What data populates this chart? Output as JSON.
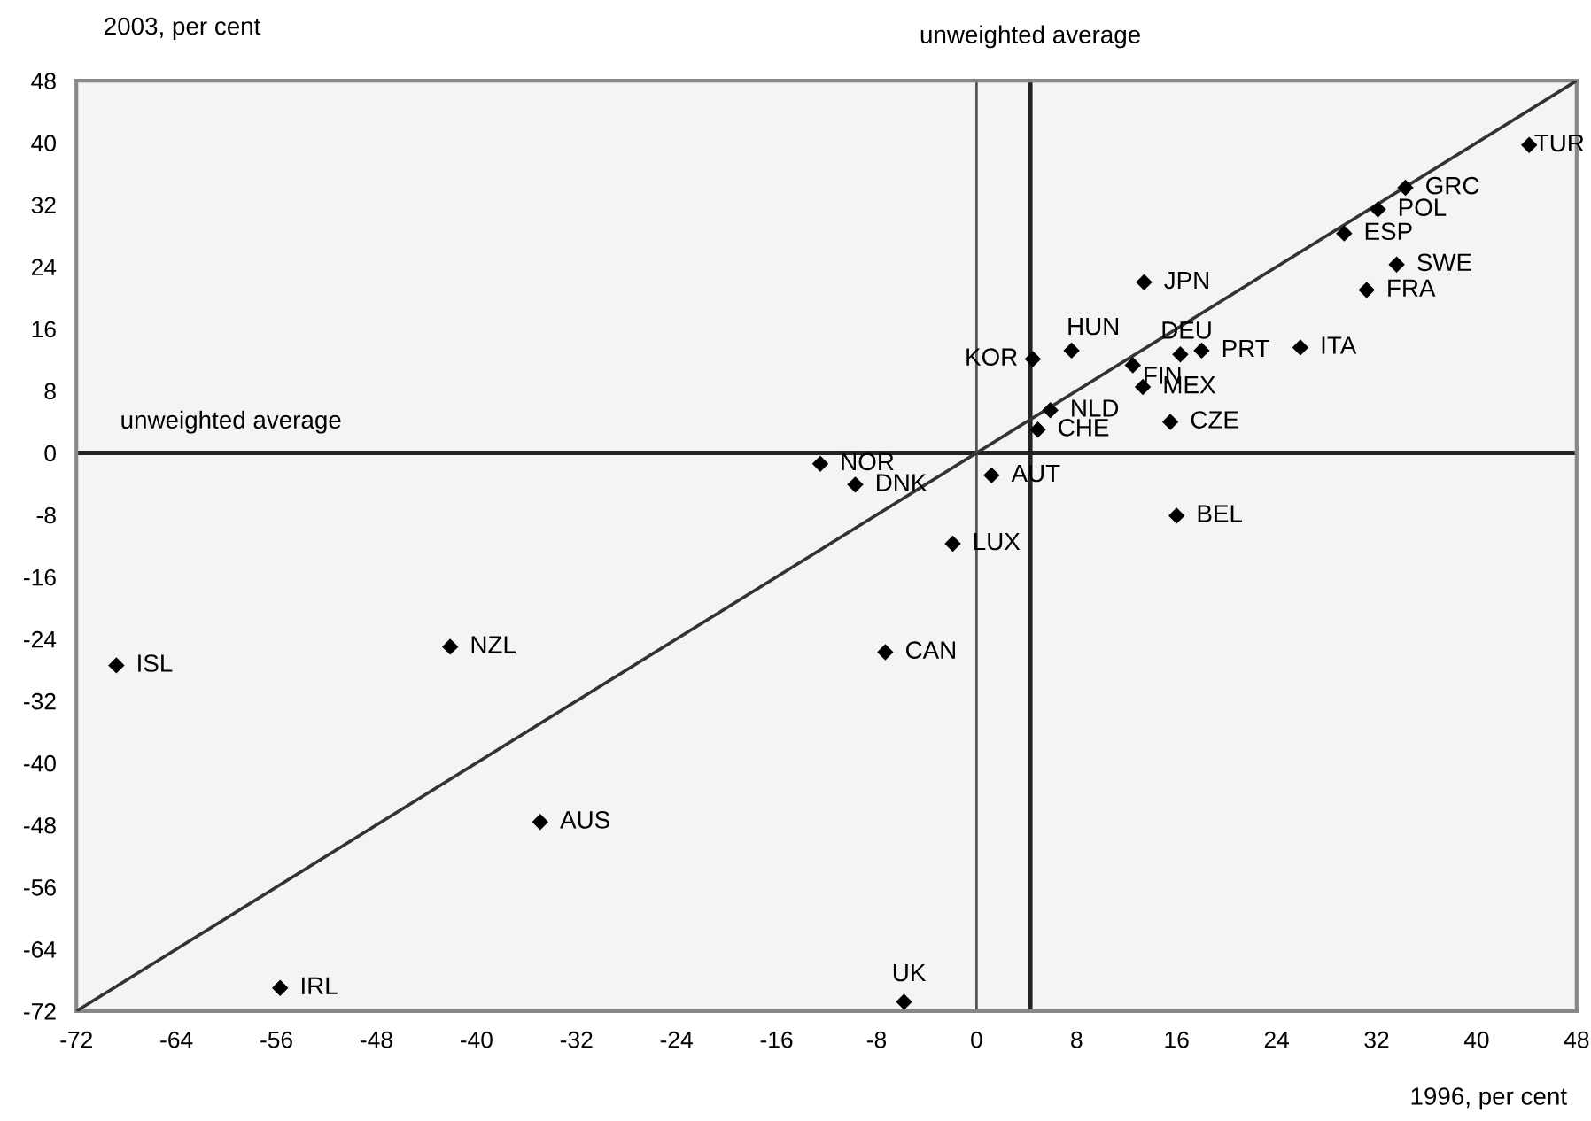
{
  "chart_data": {
    "type": "scatter",
    "xlabel": "1996, per cent",
    "ylabel": "2003, per cent",
    "xlim": [
      -72,
      48
    ],
    "ylim": [
      -72,
      48
    ],
    "xticks": [
      -72,
      -64,
      -56,
      -48,
      -40,
      -32,
      -24,
      -16,
      -8,
      0,
      8,
      16,
      24,
      32,
      40,
      48
    ],
    "yticks": [
      -72,
      -64,
      -56,
      -48,
      -40,
      -32,
      -24,
      -16,
      -8,
      0,
      8,
      16,
      24,
      32,
      40,
      48
    ],
    "grid": false,
    "legend": false,
    "marker": "diamond",
    "series": [
      {
        "color": "#000000",
        "x": [
          44.2,
          34.3,
          32.1,
          29.4,
          33.6,
          31.2,
          13.4,
          7.6,
          4.5,
          12.5,
          16.3,
          18.0,
          25.9,
          13.3,
          5.9,
          4.9,
          15.5,
          1.2,
          16.0,
          -1.9,
          -9.7,
          -12.5,
          -68.8,
          -42.1,
          -34.9,
          -55.7,
          -7.3,
          -5.8
        ],
        "values": [
          39.7,
          34.2,
          31.4,
          28.3,
          24.3,
          21.0,
          22.0,
          13.2,
          12.1,
          11.3,
          12.7,
          13.2,
          13.6,
          8.5,
          5.5,
          3.0,
          4.0,
          -2.9,
          -8.1,
          -11.7,
          -4.1,
          -1.4,
          -27.4,
          -25.0,
          -47.6,
          -69.0,
          -25.7,
          -70.8
        ]
      },
      {
        "type": "line",
        "color": "#333333",
        "x": [
          -72,
          48
        ],
        "values": [
          -72,
          48
        ],
        "marker": "none"
      }
    ],
    "ref_lines": [
      {
        "axis": "y",
        "value": 0,
        "label": "unweighted average",
        "color": "#222222"
      },
      {
        "axis": "x",
        "value": 4.3,
        "label": "unweighted average",
        "color": "#222222"
      },
      {
        "axis": "x",
        "value": 0,
        "color": "#555555"
      }
    ],
    "annotations": [
      {
        "text": "TUR",
        "x": 44.2,
        "y": 39.7
      },
      {
        "text": "GRC",
        "x": 34.3,
        "y": 34.2
      },
      {
        "text": "POL",
        "x": 32.1,
        "y": 31.4
      },
      {
        "text": "ESP",
        "x": 29.4,
        "y": 28.3
      },
      {
        "text": "SWE",
        "x": 33.6,
        "y": 24.3
      },
      {
        "text": "FRA",
        "x": 31.2,
        "y": 21.0
      },
      {
        "text": "JPN",
        "x": 13.4,
        "y": 22.0
      },
      {
        "text": "HUN",
        "x": 7.6,
        "y": 13.2
      },
      {
        "text": "KOR",
        "x": 4.5,
        "y": 12.1
      },
      {
        "text": "FIN",
        "x": 12.5,
        "y": 11.3
      },
      {
        "text": "DEU",
        "x": 16.3,
        "y": 12.7
      },
      {
        "text": "PRT",
        "x": 18.0,
        "y": 13.2
      },
      {
        "text": "ITA",
        "x": 25.9,
        "y": 13.6
      },
      {
        "text": "MEX",
        "x": 13.3,
        "y": 8.5
      },
      {
        "text": "NLD",
        "x": 5.9,
        "y": 5.5
      },
      {
        "text": "CHE",
        "x": 4.9,
        "y": 3.0
      },
      {
        "text": "CZE",
        "x": 15.5,
        "y": 4.0
      },
      {
        "text": "AUT",
        "x": 1.2,
        "y": -2.9
      },
      {
        "text": "BEL",
        "x": 16.0,
        "y": -8.1
      },
      {
        "text": "LUX",
        "x": -1.9,
        "y": -11.7
      },
      {
        "text": "DNK",
        "x": -9.7,
        "y": -4.1
      },
      {
        "text": "NOR",
        "x": -12.5,
        "y": -1.4
      },
      {
        "text": "ISL",
        "x": -68.8,
        "y": -27.4
      },
      {
        "text": "NZL",
        "x": -42.1,
        "y": -25.0
      },
      {
        "text": "AUS",
        "x": -34.9,
        "y": -47.6
      },
      {
        "text": "IRL",
        "x": -55.7,
        "y": -69.0
      },
      {
        "text": "CAN",
        "x": -7.3,
        "y": -25.7
      },
      {
        "text": "UK",
        "x": -5.8,
        "y": -70.8
      }
    ]
  }
}
